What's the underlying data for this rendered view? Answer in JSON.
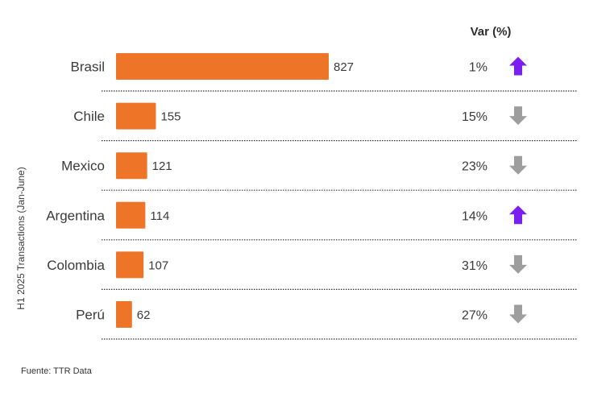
{
  "chart_data": {
    "type": "bar",
    "orientation": "horizontal",
    "ylabel": "H1 2025 Transactions  (Jan-June)",
    "var_header": "Var (%)",
    "categories": [
      "Brasil",
      "Chile",
      "Mexico",
      "Argentina",
      "Colombia",
      "Perú"
    ],
    "values": [
      827,
      155,
      121,
      114,
      107,
      62
    ],
    "variation": [
      {
        "label": "1%",
        "direction": "up"
      },
      {
        "label": "15%",
        "direction": "down"
      },
      {
        "label": "23%",
        "direction": "down"
      },
      {
        "label": "14%",
        "direction": "up"
      },
      {
        "label": "31%",
        "direction": "down"
      },
      {
        "label": "27%",
        "direction": "down"
      }
    ],
    "xlim": [
      0,
      827
    ],
    "grid": false,
    "colors": {
      "bar": "#ee7528",
      "arrow_up": "#7a1ff0",
      "arrow_down": "#9e9e9e",
      "divider": "#333333"
    }
  },
  "source": "Fuente: TTR Data"
}
